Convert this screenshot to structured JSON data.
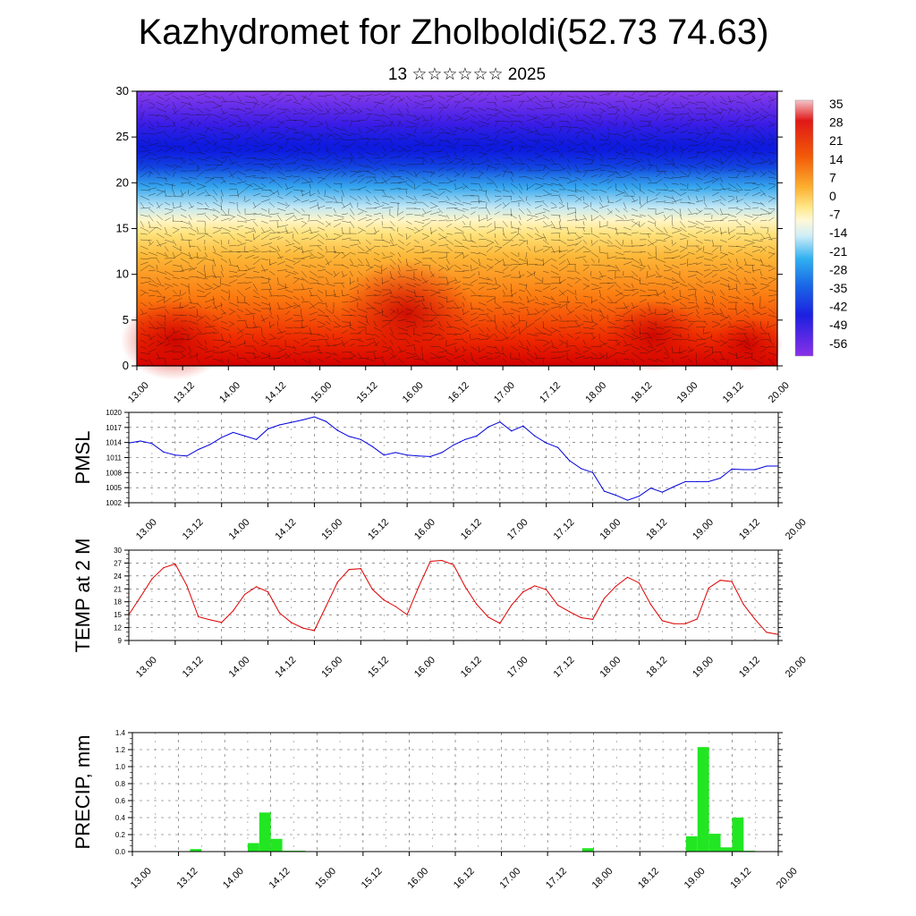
{
  "title": "Kazhydromet for Zholboldi(52.73 74.63)",
  "subtitle": "13 ☆☆☆☆☆☆ 2025",
  "chart_data": [
    {
      "type": "heatmap",
      "title": "",
      "y_ticks": [
        "0",
        "5",
        "10",
        "15",
        "20",
        "25",
        "30"
      ],
      "ylim": [
        0,
        30
      ],
      "x_ticks": [
        "13.00",
        "13.12",
        "14.00",
        "14.12",
        "15.00",
        "15.12",
        "16.00",
        "16.12",
        "17.00",
        "17.12",
        "18.00",
        "18.12",
        "19.00",
        "19.12",
        "20.00"
      ],
      "colorbar_labels": [
        "35",
        "28",
        "21",
        "14",
        "7",
        "0",
        "-7",
        "-14",
        "-21",
        "-28",
        "-35",
        "-42",
        "-49",
        "-56"
      ],
      "colorbar_range": [
        -63,
        42
      ],
      "overlay": "wind vectors",
      "colors": {
        "hot": "#d40000",
        "mid": "#ffe27a",
        "cold": "#0a10e0",
        "top": "#7a28ea"
      }
    },
    {
      "type": "line",
      "ylabel": "PMSL",
      "y_ticks": [
        "1002",
        "1005",
        "1008",
        "1011",
        "1014",
        "1017",
        "1020"
      ],
      "ylim": [
        1002,
        1020
      ],
      "x_ticks": [
        "13.00",
        "13.12",
        "14.00",
        "14.12",
        "15.00",
        "15.12",
        "16.00",
        "16.12",
        "17.00",
        "17.12",
        "18.00",
        "18.12",
        "19.00",
        "19.12",
        "20.00"
      ],
      "grid": true,
      "color": "#0000dd",
      "x": [
        0,
        3,
        6,
        9,
        12,
        15,
        18,
        21,
        24,
        27,
        30,
        33,
        36,
        39,
        42,
        45,
        48,
        51,
        54,
        57,
        60,
        63,
        66,
        69,
        72,
        75,
        78,
        81,
        84,
        87,
        90,
        93,
        96,
        99,
        102,
        105,
        108,
        111,
        114,
        117,
        120,
        123,
        126,
        129,
        132,
        135,
        138,
        141,
        144,
        147,
        150,
        153,
        156,
        159,
        162,
        165,
        168
      ],
      "values": [
        1013.9,
        1014.3,
        1013.8,
        1012.1,
        1011.5,
        1011.3,
        1012.6,
        1013.6,
        1015.0,
        1016.0,
        1015.3,
        1014.6,
        1016.7,
        1017.5,
        1018.0,
        1018.5,
        1019.1,
        1018.2,
        1016.4,
        1015.2,
        1014.6,
        1013.2,
        1011.5,
        1012.0,
        1011.5,
        1011.3,
        1011.2,
        1012.0,
        1013.5,
        1014.6,
        1015.3,
        1017.1,
        1018.1,
        1016.3,
        1017.3,
        1015.3,
        1013.9,
        1013.0,
        1010.4,
        1008.8,
        1008.0,
        1004.3,
        1003.5,
        1002.5,
        1003.3,
        1004.9,
        1004.1,
        1005.2,
        1006.2,
        1006.2,
        1006.2,
        1006.9,
        1008.7,
        1008.6,
        1008.6,
        1009.3,
        1009.3
      ]
    },
    {
      "type": "line",
      "ylabel": "TEMP at 2 M",
      "y_ticks": [
        "9",
        "12",
        "15",
        "18",
        "21",
        "24",
        "27",
        "30"
      ],
      "ylim": [
        9,
        30
      ],
      "x_ticks": [
        "13.00",
        "13.12",
        "14.00",
        "14.12",
        "15.00",
        "15.12",
        "16.00",
        "16.12",
        "17.00",
        "17.12",
        "18.00",
        "18.12",
        "19.00",
        "19.12",
        "20.00"
      ],
      "grid": true,
      "color": "#dd0000",
      "x": [
        0,
        3,
        6,
        9,
        12,
        15,
        18,
        21,
        24,
        27,
        30,
        33,
        36,
        39,
        42,
        45,
        48,
        51,
        54,
        57,
        60,
        63,
        66,
        69,
        72,
        75,
        78,
        81,
        84,
        87,
        90,
        93,
        96,
        99,
        102,
        105,
        108,
        111,
        114,
        117,
        120,
        123,
        126,
        129,
        132,
        135,
        138,
        141,
        144,
        147,
        150,
        153,
        156,
        159,
        162,
        165,
        168
      ],
      "values": [
        15.0,
        19.1,
        23.3,
        25.9,
        26.8,
        21.8,
        14.5,
        13.8,
        13.2,
        15.9,
        19.7,
        21.5,
        20.3,
        15.4,
        13.2,
        11.9,
        11.3,
        16.9,
        22.6,
        25.5,
        25.7,
        20.9,
        18.4,
        16.9,
        15.0,
        21.5,
        27.4,
        27.6,
        26.6,
        21.5,
        17.4,
        14.4,
        13.0,
        17.2,
        20.3,
        21.7,
        20.8,
        17.2,
        15.7,
        14.3,
        13.9,
        18.8,
        21.6,
        23.7,
        22.4,
        17.4,
        13.6,
        12.9,
        12.9,
        14.0,
        21.2,
        23.0,
        22.7,
        17.4,
        13.9,
        10.9,
        10.4
      ]
    },
    {
      "type": "bar",
      "ylabel": "PRECIP, mm",
      "y_ticks": [
        "0.0",
        "0.2",
        "0.4",
        "0.6",
        "0.8",
        "1.0",
        "1.2",
        "1.4"
      ],
      "ylim": [
        0,
        1.4
      ],
      "x_ticks": [
        "13.00",
        "13.12",
        "14.00",
        "14.12",
        "15.00",
        "15.12",
        "16.00",
        "16.12",
        "17.00",
        "17.12",
        "18.00",
        "18.12",
        "19.00",
        "19.12",
        "20.00"
      ],
      "grid": true,
      "color": "#22e622",
      "x": [
        0,
        3,
        6,
        9,
        12,
        15,
        18,
        21,
        24,
        27,
        30,
        33,
        36,
        39,
        42,
        45,
        48,
        51,
        54,
        57,
        60,
        63,
        66,
        69,
        72,
        75,
        78,
        81,
        84,
        87,
        90,
        93,
        96,
        99,
        102,
        105,
        108,
        111,
        114,
        117,
        120,
        123,
        126,
        129,
        132,
        135,
        138,
        141,
        144,
        147,
        150,
        153,
        156,
        159,
        162,
        165
      ],
      "values": [
        0,
        0,
        0,
        0,
        0,
        0.03,
        0,
        0,
        0,
        0,
        0.1,
        0.46,
        0.15,
        0.01,
        0.01,
        0,
        0,
        0,
        0,
        0,
        0,
        0,
        0,
        0,
        0,
        0,
        0,
        0,
        0,
        0,
        0,
        0,
        0,
        0,
        0,
        0,
        0,
        0,
        0,
        0.04,
        0,
        0,
        0,
        0,
        0,
        0,
        0,
        0,
        0.18,
        1.23,
        0.21,
        0.05,
        0.4,
        0.01,
        0,
        0
      ]
    }
  ]
}
